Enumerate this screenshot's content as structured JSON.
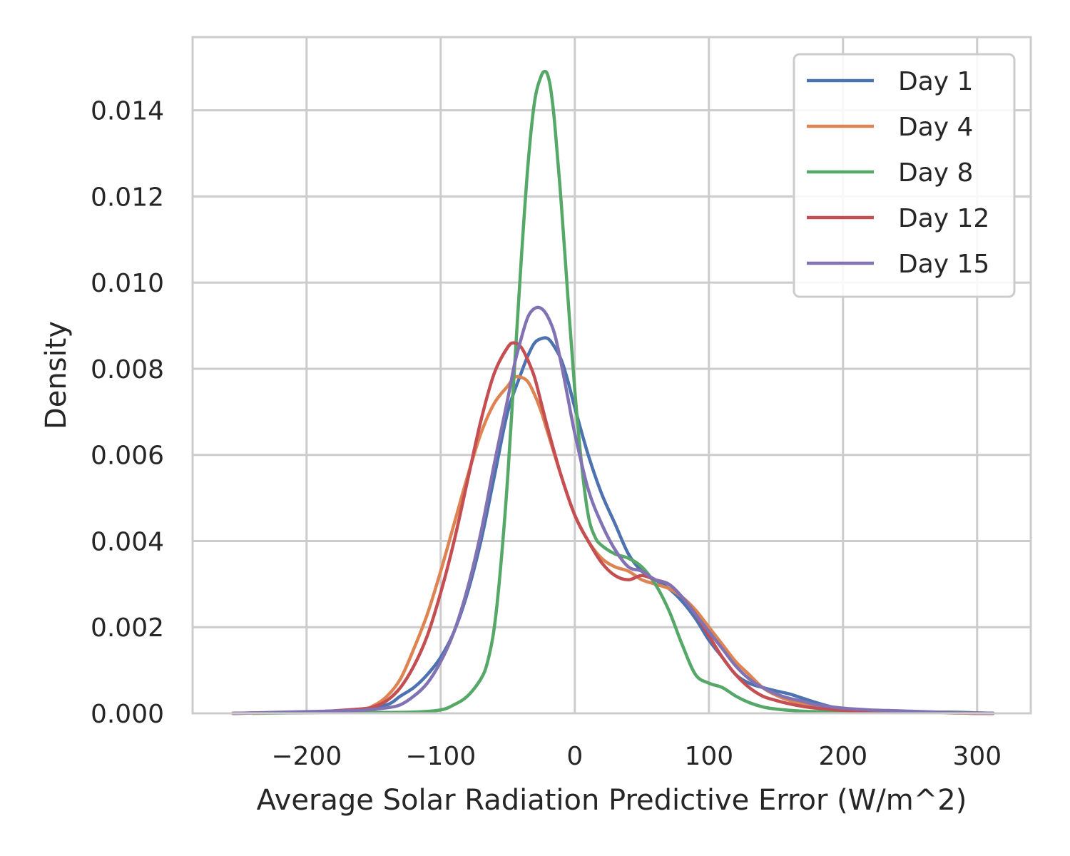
{
  "chart_data": {
    "type": "line",
    "title": "",
    "xlabel": "Average Solar Radiation Predictive Error (W/m^2)",
    "ylabel": "Density",
    "xlim": [
      -285,
      340
    ],
    "ylim": [
      0,
      0.0157
    ],
    "xticks": [
      -200,
      -100,
      0,
      100,
      200,
      300
    ],
    "xtick_labels": [
      "−200",
      "−100",
      "0",
      "100",
      "200",
      "300"
    ],
    "yticks": [
      0,
      0.002,
      0.004,
      0.006,
      0.008,
      0.01,
      0.012,
      0.014
    ],
    "ytick_labels": [
      "0.000",
      "0.002",
      "0.004",
      "0.006",
      "0.008",
      "0.010",
      "0.012",
      "0.014"
    ],
    "grid": true,
    "legend_position": "top-right",
    "series": [
      {
        "name": "Day 1",
        "color": "#4c72b0",
        "x": [
          -255,
          -200,
          -160,
          -140,
          -130,
          -120,
          -110,
          -100,
          -90,
          -80,
          -70,
          -60,
          -50,
          -40,
          -35,
          -30,
          -25,
          -20,
          -15,
          -10,
          -5,
          0,
          10,
          20,
          30,
          40,
          50,
          60,
          70,
          80,
          90,
          100,
          110,
          120,
          130,
          140,
          150,
          160,
          170,
          180,
          190,
          200,
          220,
          240,
          260,
          280,
          300,
          312
        ],
        "y": [
          0,
          3e-05,
          8e-05,
          0.0002,
          0.0004,
          0.0006,
          0.0009,
          0.0013,
          0.0019,
          0.0028,
          0.004,
          0.0055,
          0.007,
          0.0079,
          0.0083,
          0.0086,
          0.0087,
          0.0087,
          0.0085,
          0.0082,
          0.0077,
          0.0071,
          0.006,
          0.0051,
          0.0044,
          0.0037,
          0.0033,
          0.0031,
          0.0029,
          0.0026,
          0.0022,
          0.0017,
          0.0013,
          0.0009,
          0.0007,
          0.0006,
          0.00052,
          0.00045,
          0.00035,
          0.00025,
          0.00016,
          0.0001,
          6e-05,
          4e-05,
          2e-05,
          1e-05,
          0,
          0
        ]
      },
      {
        "name": "Day 4",
        "color": "#dd8452",
        "x": [
          -255,
          -200,
          -160,
          -150,
          -140,
          -130,
          -120,
          -110,
          -100,
          -90,
          -80,
          -70,
          -60,
          -50,
          -45,
          -40,
          -35,
          -30,
          -25,
          -20,
          -10,
          0,
          10,
          20,
          30,
          40,
          50,
          60,
          70,
          80,
          90,
          100,
          110,
          120,
          130,
          140,
          150,
          160,
          170,
          180,
          200,
          220,
          240,
          260,
          280,
          300,
          312
        ],
        "y": [
          0,
          3e-05,
          0.0001,
          0.00018,
          0.0004,
          0.0008,
          0.0015,
          0.0023,
          0.0033,
          0.0044,
          0.0055,
          0.0065,
          0.0072,
          0.0076,
          0.0078,
          0.0078,
          0.0077,
          0.0074,
          0.007,
          0.0065,
          0.0055,
          0.0046,
          0.004,
          0.0036,
          0.0034,
          0.0033,
          0.0031,
          0.003,
          0.0029,
          0.0027,
          0.0024,
          0.002,
          0.0016,
          0.0012,
          0.0009,
          0.0006,
          0.00042,
          0.0003,
          0.00022,
          0.00015,
          8e-05,
          5e-05,
          4e-05,
          2e-05,
          1e-05,
          0,
          0
        ]
      },
      {
        "name": "Day 8",
        "color": "#55a868",
        "x": [
          -240,
          -200,
          -150,
          -120,
          -100,
          -90,
          -80,
          -70,
          -65,
          -60,
          -55,
          -50,
          -45,
          -40,
          -35,
          -30,
          -25,
          -22,
          -20,
          -18,
          -15,
          -10,
          -5,
          0,
          5,
          10,
          15,
          20,
          30,
          40,
          50,
          60,
          70,
          80,
          90,
          100,
          110,
          120,
          130,
          140,
          150,
          160,
          170,
          180,
          200,
          240,
          280,
          300,
          312
        ],
        "y": [
          0,
          1e-05,
          2e-05,
          3e-05,
          8e-05,
          0.0002,
          0.0004,
          0.0008,
          0.0012,
          0.002,
          0.0035,
          0.0055,
          0.008,
          0.0105,
          0.0127,
          0.0142,
          0.0148,
          0.0149,
          0.0148,
          0.0145,
          0.0137,
          0.0118,
          0.0096,
          0.0075,
          0.0058,
          0.0046,
          0.0041,
          0.0039,
          0.0037,
          0.0036,
          0.0034,
          0.003,
          0.0024,
          0.0016,
          0.0009,
          0.0007,
          0.0006,
          0.0004,
          0.00025,
          0.00015,
          0.0001,
          7e-05,
          5e-05,
          4e-05,
          3e-05,
          2e-05,
          3e-05,
          1e-05,
          0
        ]
      },
      {
        "name": "Day 12",
        "color": "#c44e52",
        "x": [
          -255,
          -200,
          -160,
          -150,
          -140,
          -130,
          -120,
          -110,
          -100,
          -90,
          -80,
          -70,
          -60,
          -50,
          -45,
          -40,
          -35,
          -30,
          -25,
          -20,
          -10,
          0,
          10,
          20,
          30,
          40,
          50,
          60,
          70,
          80,
          90,
          100,
          110,
          120,
          130,
          140,
          150,
          160,
          170,
          180,
          200,
          220,
          240,
          260,
          280,
          300,
          312
        ],
        "y": [
          0,
          3e-05,
          0.0001,
          0.00015,
          0.0003,
          0.0006,
          0.0011,
          0.0018,
          0.0028,
          0.004,
          0.0054,
          0.0068,
          0.0079,
          0.0085,
          0.0086,
          0.0085,
          0.0082,
          0.0078,
          0.0072,
          0.0066,
          0.0055,
          0.0046,
          0.004,
          0.0035,
          0.0032,
          0.0031,
          0.0032,
          0.0031,
          0.003,
          0.0027,
          0.0023,
          0.0018,
          0.0013,
          0.0009,
          0.0006,
          0.0004,
          0.0003,
          0.00022,
          0.00016,
          0.00012,
          7e-05,
          5e-05,
          3e-05,
          2e-05,
          1e-05,
          0,
          0
        ]
      },
      {
        "name": "Day 15",
        "color": "#8172b3",
        "x": [
          -255,
          -200,
          -160,
          -140,
          -130,
          -120,
          -110,
          -100,
          -90,
          -80,
          -70,
          -60,
          -50,
          -45,
          -40,
          -35,
          -30,
          -25,
          -20,
          -15,
          -10,
          -5,
          0,
          10,
          20,
          30,
          40,
          50,
          60,
          70,
          80,
          90,
          100,
          110,
          120,
          130,
          140,
          150,
          160,
          170,
          180,
          200,
          220,
          240,
          260,
          280,
          300,
          312
        ],
        "y": [
          0,
          4e-05,
          7e-05,
          0.00013,
          0.0002,
          0.0004,
          0.0007,
          0.0012,
          0.0019,
          0.0029,
          0.0042,
          0.0058,
          0.0073,
          0.0081,
          0.0087,
          0.0092,
          0.0094,
          0.0094,
          0.0092,
          0.0088,
          0.0081,
          0.0073,
          0.0065,
          0.0052,
          0.0044,
          0.0038,
          0.0034,
          0.0033,
          0.0031,
          0.003,
          0.0027,
          0.0023,
          0.0019,
          0.0015,
          0.0011,
          0.0008,
          0.0006,
          0.00045,
          0.00035,
          0.00028,
          0.0002,
          0.00012,
          8e-05,
          6e-05,
          4e-05,
          2e-05,
          1e-05,
          0
        ]
      }
    ]
  }
}
